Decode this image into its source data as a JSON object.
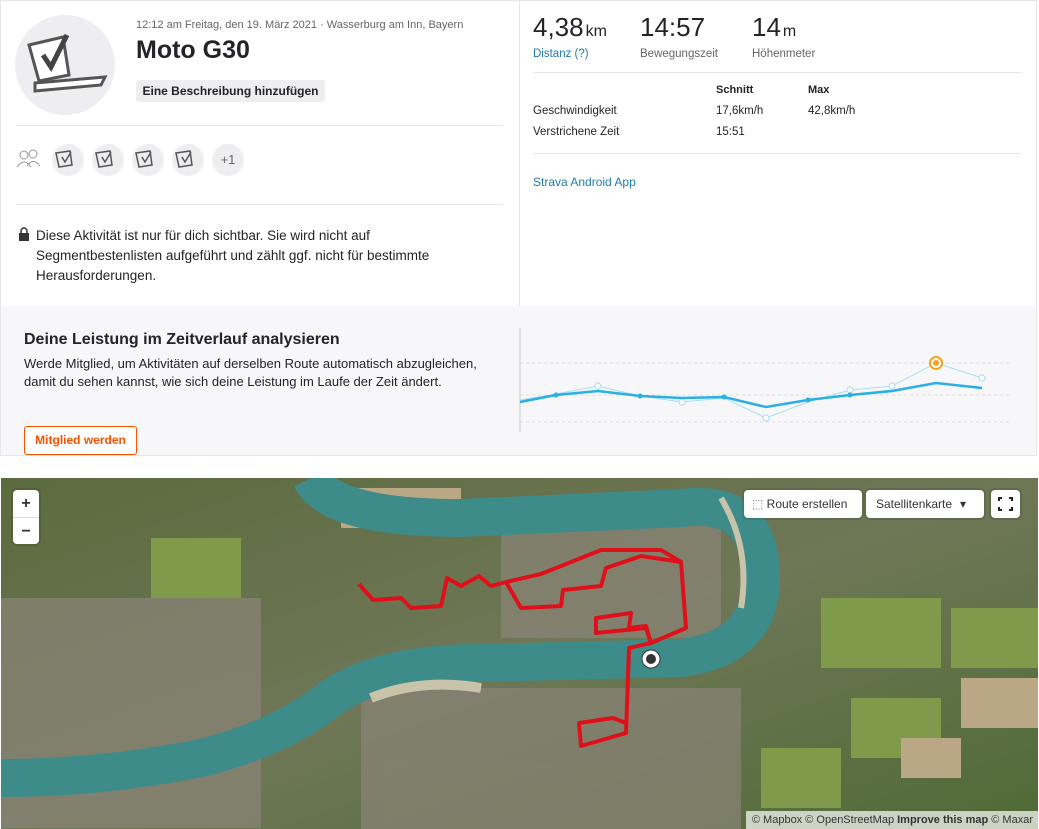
{
  "header": {
    "datetime": "12:12 am Freitag, den 19. März 2021 · Wasserburg am Inn, Bayern",
    "title": "Moto G30",
    "add_description": "Eine Beschreibung hinzufügen",
    "more_athletes": "+1",
    "privacy_note": "Diese Aktivität ist nur für dich sichtbar. Sie wird nicht auf Segmentbestenlisten aufgeführt und zählt ggf. nicht für bestimmte Herausforderungen."
  },
  "stats": [
    {
      "value": "4,38",
      "unit": "km",
      "label": "Distanz (?)"
    },
    {
      "value": "14:57",
      "label": "Bewegungszeit"
    },
    {
      "value": "14",
      "unit": "m",
      "label": "Höhenmeter"
    }
  ],
  "details": {
    "columns": [
      "Schnitt",
      "Max"
    ],
    "rows": [
      [
        "Geschwindigkeit",
        "17,6km/h",
        "42,8km/h"
      ],
      [
        "Verstrichene Zeit",
        "15:51"
      ]
    ],
    "device": "Strava Android App"
  },
  "promo": {
    "heading": "Deine Leistung im Zeitverlauf analysieren",
    "body": "Werde Mitglied, um Aktivitäten auf derselben Route automatisch abzugleichen, damit du sehen kannst, wie sich deine Leistung im Laufe der Zeit ändert.",
    "button": "Mitglied werden"
  },
  "map": {
    "zoom_in": "+",
    "zoom_out": "−",
    "route_button": "Route erstellen",
    "layer_button": "Satellitenkarte",
    "attribution": [
      "© Mapbox © OpenStreetMap",
      "Improve this map",
      "© Maxar"
    ]
  }
}
